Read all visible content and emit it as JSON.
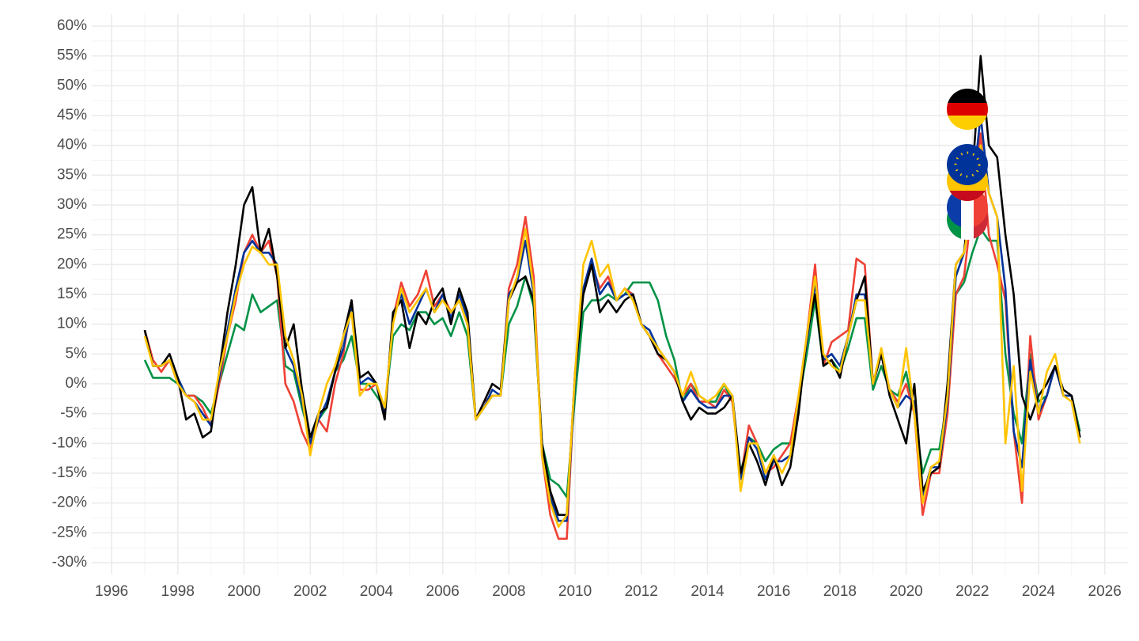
{
  "chart_data": {
    "type": "line",
    "x": [
      1997.0,
      1997.25,
      1997.5,
      1997.75,
      1998.0,
      1998.25,
      1998.5,
      1998.75,
      1999.0,
      1999.25,
      1999.5,
      1999.75,
      2000.0,
      2000.25,
      2000.5,
      2000.75,
      2001.0,
      2001.25,
      2001.5,
      2001.75,
      2002.0,
      2002.25,
      2002.5,
      2002.75,
      2003.0,
      2003.25,
      2003.5,
      2003.75,
      2004.0,
      2004.25,
      2004.5,
      2004.75,
      2005.0,
      2005.25,
      2005.5,
      2005.75,
      2006.0,
      2006.25,
      2006.5,
      2006.75,
      2007.0,
      2007.25,
      2007.5,
      2007.75,
      2008.0,
      2008.25,
      2008.5,
      2008.75,
      2009.0,
      2009.25,
      2009.5,
      2009.75,
      2010.0,
      2010.25,
      2010.5,
      2010.75,
      2011.0,
      2011.25,
      2011.5,
      2011.75,
      2012.0,
      2012.25,
      2012.5,
      2012.75,
      2013.0,
      2013.25,
      2013.5,
      2013.75,
      2014.0,
      2014.25,
      2014.5,
      2014.75,
      2015.0,
      2015.25,
      2015.5,
      2015.75,
      2016.0,
      2016.25,
      2016.5,
      2016.75,
      2017.0,
      2017.25,
      2017.5,
      2017.75,
      2018.0,
      2018.25,
      2018.5,
      2018.75,
      2019.0,
      2019.25,
      2019.5,
      2019.75,
      2020.0,
      2020.25,
      2020.5,
      2020.75,
      2021.0,
      2021.25,
      2021.5,
      2021.75,
      2022.0,
      2022.25,
      2022.5,
      2022.75,
      2023.0,
      2023.25,
      2023.5,
      2023.75,
      2024.0,
      2024.25,
      2024.5,
      2024.75,
      2025.0,
      2025.25
    ],
    "series": [
      {
        "color": "#009246",
        "values": [
          4,
          1,
          1,
          1,
          0,
          -2,
          -2,
          -3,
          -5,
          0,
          5,
          10,
          9,
          15,
          12,
          13,
          14,
          3,
          2,
          -4,
          -9,
          -6,
          -4,
          2,
          4,
          8,
          0,
          0,
          -2,
          -4,
          8,
          10,
          9,
          12,
          12,
          10,
          11,
          8,
          12,
          8,
          -6,
          -4,
          -2,
          -2,
          10,
          13,
          18,
          13,
          -10,
          -16,
          -17,
          -19,
          -2,
          12,
          14,
          14,
          15,
          14,
          15,
          17,
          17,
          17,
          14,
          8,
          4,
          -3,
          0,
          -2,
          -3,
          -3,
          0,
          -3,
          -15,
          -9,
          -10,
          -13,
          -11,
          -10,
          -10,
          -3,
          5,
          14,
          3,
          4,
          2,
          6,
          11,
          11,
          -1,
          3,
          -1,
          -2,
          2,
          -5,
          -15,
          -11,
          -11,
          -3,
          15,
          17,
          22,
          26,
          24,
          24,
          5,
          -5,
          -10,
          5,
          -3,
          -2,
          3,
          -2,
          -2,
          -8
        ]
      },
      {
        "color": "#ef4135",
        "values": [
          9,
          4,
          2,
          4,
          0,
          -2,
          -2,
          -4,
          -7,
          0,
          8,
          14,
          22,
          25,
          22,
          24,
          18,
          0,
          -3,
          -8,
          -11,
          -6,
          -8,
          0,
          5,
          14,
          -1,
          -1,
          0,
          -5,
          11,
          17,
          13,
          15,
          19,
          13,
          15,
          12,
          14,
          10,
          -6,
          -3,
          -2,
          -2,
          16,
          20,
          28,
          18,
          -12,
          -22,
          -26,
          -26,
          2,
          16,
          20,
          16,
          18,
          14,
          16,
          15,
          10,
          8,
          5,
          3,
          1,
          -2,
          0,
          -3,
          -3,
          -4,
          -1,
          -3,
          -16,
          -7,
          -10,
          -15,
          -14,
          -12,
          -10,
          -2,
          8,
          20,
          3,
          7,
          8,
          9,
          21,
          20,
          0,
          5,
          -1,
          -3,
          0,
          -5,
          -22,
          -15,
          -15,
          -5,
          15,
          18,
          30,
          42,
          25,
          20,
          14,
          -8,
          -20,
          8,
          -6,
          -2,
          3,
          -2,
          -2,
          -9
        ]
      },
      {
        "color": "#003399",
        "values": [
          9,
          3,
          3,
          4,
          1,
          -2,
          -3,
          -5,
          -7,
          1,
          9,
          16,
          22,
          24,
          22,
          22,
          20,
          6,
          3,
          -3,
          -10,
          -6,
          -3,
          2,
          6,
          13,
          0,
          1,
          0,
          -5,
          11,
          15,
          10,
          13,
          16,
          12,
          15,
          11,
          15,
          11,
          -6,
          -4,
          -1,
          -2,
          15,
          17,
          24,
          15,
          -11,
          -19,
          -23,
          -23,
          1,
          16,
          21,
          15,
          17,
          14,
          15,
          15,
          10,
          9,
          6,
          4,
          2,
          -3,
          -1,
          -3,
          -4,
          -4,
          -2,
          -2,
          -16,
          -9,
          -11,
          -16,
          -13,
          -13,
          -12,
          -3,
          7,
          17,
          4,
          5,
          3,
          8,
          15,
          15,
          0,
          5,
          -1,
          -4,
          -2,
          -3,
          -19,
          -14,
          -14,
          -3,
          18,
          22,
          32,
          45,
          32,
          28,
          16,
          -8,
          -14,
          4,
          -5,
          -2,
          3,
          -2,
          -2,
          -9
        ]
      },
      {
        "color": "#000000",
        "values": [
          9,
          3,
          3,
          5,
          1,
          -6,
          -5,
          -9,
          -8,
          2,
          12,
          20,
          30,
          33,
          22,
          26,
          18,
          6,
          10,
          -1,
          -9,
          -5,
          -4,
          2,
          8,
          14,
          1,
          2,
          0,
          -6,
          12,
          14,
          6,
          12,
          10,
          14,
          16,
          10,
          16,
          12,
          -6,
          -3,
          0,
          -1,
          14,
          17,
          18,
          14,
          -10,
          -18,
          -22,
          -22,
          2,
          15,
          20,
          12,
          14,
          12,
          14,
          15,
          10,
          8,
          5,
          4,
          2,
          -3,
          -6,
          -4,
          -5,
          -5,
          -4,
          -2,
          -15,
          -10,
          -13,
          -17,
          -12,
          -17,
          -14,
          -5,
          8,
          15,
          3,
          4,
          1,
          8,
          14,
          18,
          0,
          5,
          -2,
          -6,
          -10,
          0,
          -18,
          -15,
          -14,
          0,
          20,
          22,
          35,
          55,
          40,
          38,
          25,
          15,
          -2,
          -6,
          -2,
          0,
          3,
          -1,
          -2,
          -9
        ]
      },
      {
        "color": "#ffc400",
        "values": [
          8,
          3,
          3,
          4,
          0,
          -2,
          -3,
          -6,
          -6,
          2,
          8,
          15,
          20,
          23,
          22,
          20,
          20,
          8,
          4,
          -2,
          -12,
          -5,
          0,
          3,
          8,
          12,
          -2,
          0,
          0,
          -4,
          10,
          16,
          12,
          14,
          16,
          12,
          14,
          12,
          14,
          10,
          -6,
          -4,
          -2,
          -2,
          14,
          18,
          26,
          16,
          -12,
          -20,
          -24,
          -22,
          2,
          20,
          24,
          18,
          20,
          14,
          16,
          14,
          10,
          8,
          6,
          4,
          2,
          -2,
          2,
          -2,
          -3,
          -2,
          0,
          -2,
          -18,
          -10,
          -10,
          -15,
          -12,
          -15,
          -12,
          -2,
          8,
          18,
          5,
          3,
          2,
          8,
          14,
          14,
          0,
          6,
          -1,
          -4,
          6,
          -5,
          -20,
          -14,
          -13,
          -2,
          20,
          22,
          30,
          40,
          32,
          28,
          -10,
          3,
          -18,
          2,
          -5,
          2,
          5,
          -2,
          -3,
          -10
        ]
      }
    ],
    "xlim": [
      1995.4,
      2026.7
    ],
    "xticks": [
      1996,
      1998,
      2000,
      2002,
      2004,
      2006,
      2008,
      2010,
      2012,
      2014,
      2016,
      2018,
      2020,
      2022,
      2024,
      2026
    ],
    "ylim": [
      -32,
      62
    ],
    "yticks": [
      {
        "value": -30,
        "label": "-30%"
      },
      {
        "value": -25,
        "label": "-25%"
      },
      {
        "value": -20,
        "label": "-20%"
      },
      {
        "value": -15,
        "label": "-15%"
      },
      {
        "value": -10,
        "label": "-10%"
      },
      {
        "value": -5,
        "label": "-5%"
      },
      {
        "value": 0,
        "label": "0%"
      },
      {
        "value": 5,
        "label": "5%"
      },
      {
        "value": 10,
        "label": "10%"
      },
      {
        "value": 15,
        "label": "15%"
      },
      {
        "value": 20,
        "label": "20%"
      },
      {
        "value": 25,
        "label": "25%"
      },
      {
        "value": 30,
        "label": "30%"
      },
      {
        "value": 35,
        "label": "35%"
      },
      {
        "value": 40,
        "label": "40%"
      },
      {
        "value": 45,
        "label": "45%"
      },
      {
        "value": 50,
        "label": "50%"
      },
      {
        "value": 55,
        "label": "55%"
      },
      {
        "value": 60,
        "label": "60%"
      }
    ],
    "grid": true
  }
}
